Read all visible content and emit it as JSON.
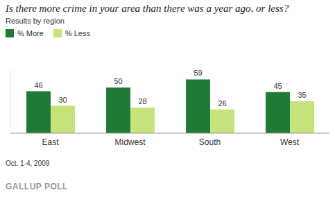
{
  "chart_data": {
    "type": "bar",
    "title": "Is there more crime in your area than there was a year ago, or less?",
    "subtitle": "Results by region",
    "categories": [
      "East",
      "Midwest",
      "South",
      "West"
    ],
    "series": [
      {
        "name": "% More",
        "color": "#1f7a36",
        "values": [
          46,
          50,
          59,
          45
        ]
      },
      {
        "name": "% Less",
        "color": "#c6e27a",
        "values": [
          30,
          28,
          26,
          35
        ]
      }
    ],
    "ylim": [
      0,
      70
    ],
    "tick_labels": "x",
    "grid": false,
    "legend": "top left",
    "data_labels": true,
    "annotations": [
      "Oct. 1-4, 2009",
      "GALLUP POLL"
    ]
  }
}
